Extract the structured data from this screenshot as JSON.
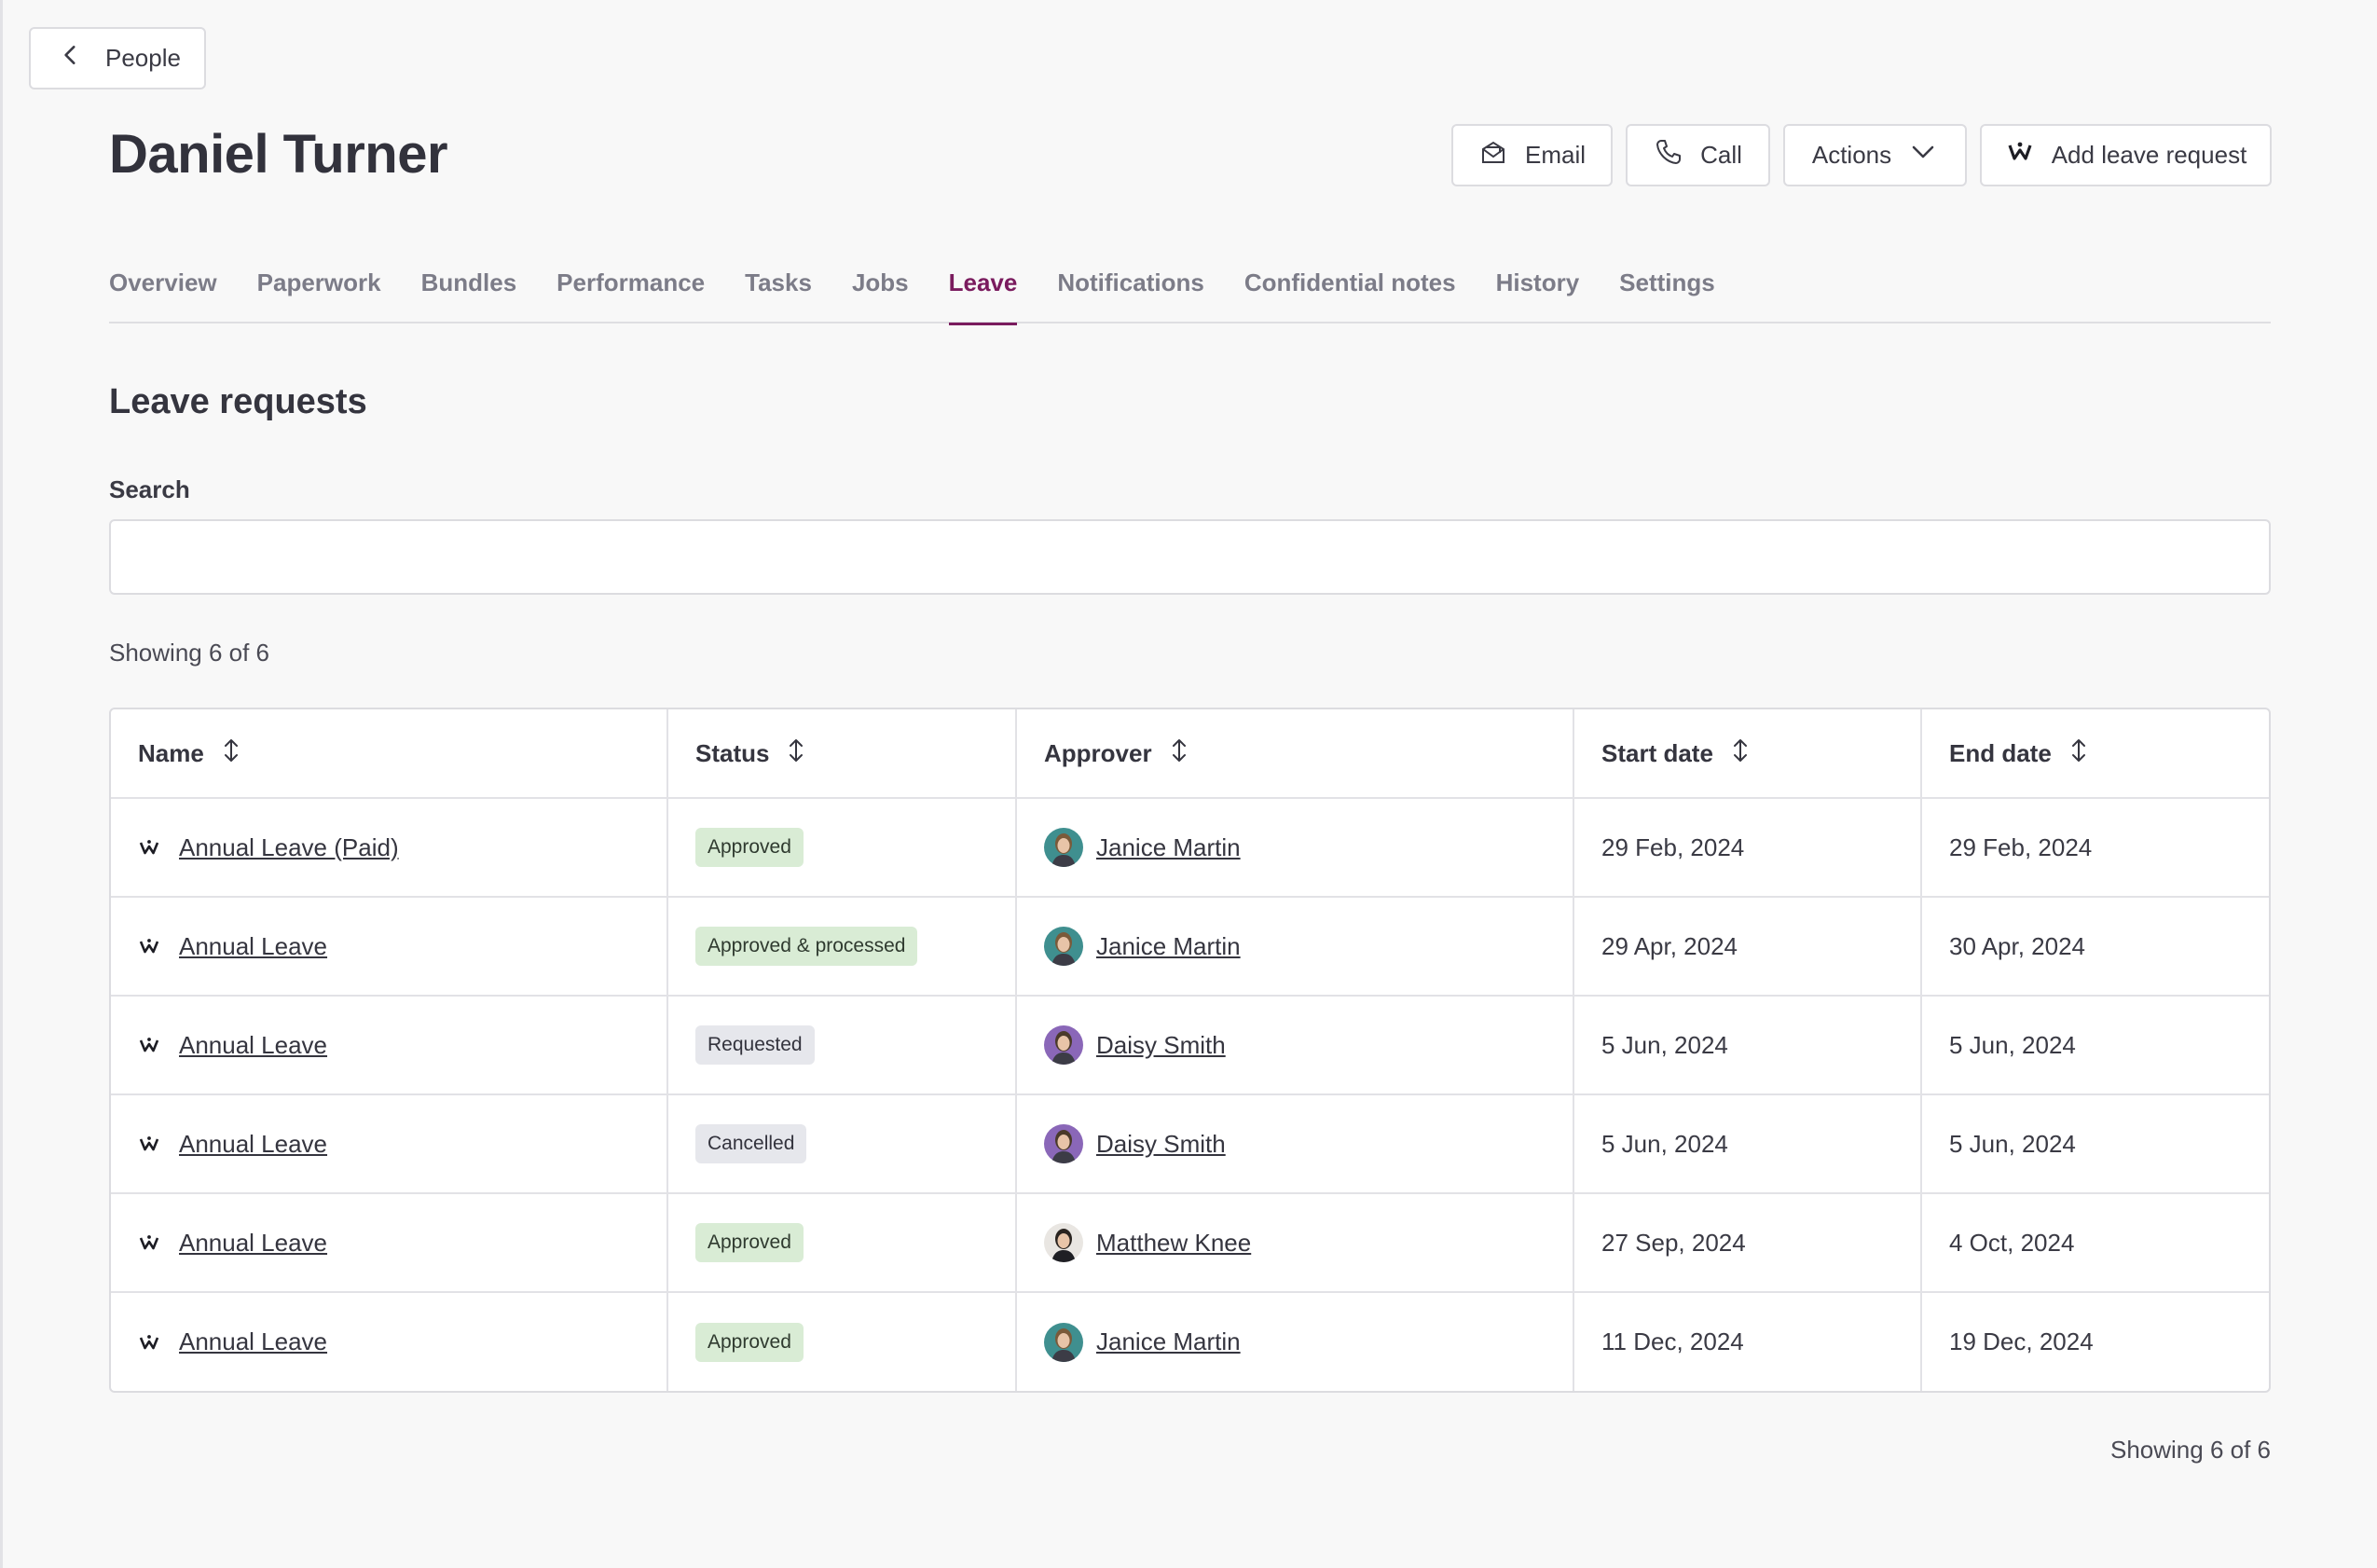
{
  "back": {
    "label": "People"
  },
  "person": {
    "name": "Daniel Turner"
  },
  "header_actions": {
    "email": "Email",
    "call": "Call",
    "actions": "Actions",
    "add_leave": "Add leave request"
  },
  "tabs": [
    {
      "label": "Overview",
      "active": false
    },
    {
      "label": "Paperwork",
      "active": false
    },
    {
      "label": "Bundles",
      "active": false
    },
    {
      "label": "Performance",
      "active": false
    },
    {
      "label": "Tasks",
      "active": false
    },
    {
      "label": "Jobs",
      "active": false
    },
    {
      "label": "Leave",
      "active": true
    },
    {
      "label": "Notifications",
      "active": false
    },
    {
      "label": "Confidential notes",
      "active": false
    },
    {
      "label": "History",
      "active": false
    },
    {
      "label": "Settings",
      "active": false
    }
  ],
  "section": {
    "title": "Leave requests"
  },
  "search": {
    "label": "Search",
    "value": "",
    "placeholder": ""
  },
  "showing": "Showing 6 of 6",
  "table": {
    "columns": [
      "Name",
      "Status",
      "Approver",
      "Start date",
      "End date"
    ],
    "rows": [
      {
        "name": "Annual Leave (Paid)",
        "status": "Approved",
        "status_color": "green",
        "approver": "Janice Martin",
        "avatar": "teal",
        "start": "29 Feb, 2024",
        "end": "29 Feb, 2024"
      },
      {
        "name": "Annual Leave",
        "status": "Approved & processed",
        "status_color": "green",
        "approver": "Janice Martin",
        "avatar": "teal",
        "start": "29 Apr, 2024",
        "end": "30 Apr, 2024"
      },
      {
        "name": "Annual Leave",
        "status": "Requested",
        "status_color": "gray",
        "approver": "Daisy Smith",
        "avatar": "purple",
        "start": "5 Jun, 2024",
        "end": "5 Jun, 2024"
      },
      {
        "name": "Annual Leave",
        "status": "Cancelled",
        "status_color": "gray",
        "approver": "Daisy Smith",
        "avatar": "purple",
        "start": "5 Jun, 2024",
        "end": "5 Jun, 2024"
      },
      {
        "name": "Annual Leave",
        "status": "Approved",
        "status_color": "green",
        "approver": "Matthew Knee",
        "avatar": "light",
        "start": "27 Sep, 2024",
        "end": "4 Oct, 2024"
      },
      {
        "name": "Annual Leave",
        "status": "Approved",
        "status_color": "green",
        "approver": "Janice Martin",
        "avatar": "teal",
        "start": "11 Dec, 2024",
        "end": "19 Dec, 2024"
      }
    ]
  },
  "colors": {
    "accent": "#7a1b5e",
    "badge_green": "#d9ecd5",
    "badge_gray": "#e6e7ec",
    "avatar_teal": "#3f8f8f",
    "avatar_purple": "#8a67b8",
    "avatar_light": "#e9e6e2"
  },
  "icons": {
    "back": "chevron-left-icon",
    "email": "envelope-icon",
    "call": "phone-icon",
    "actions": "chevron-down-icon",
    "add_leave": "leave-logo-icon",
    "sort": "sort-icon",
    "row_leave": "leave-logo-icon"
  }
}
